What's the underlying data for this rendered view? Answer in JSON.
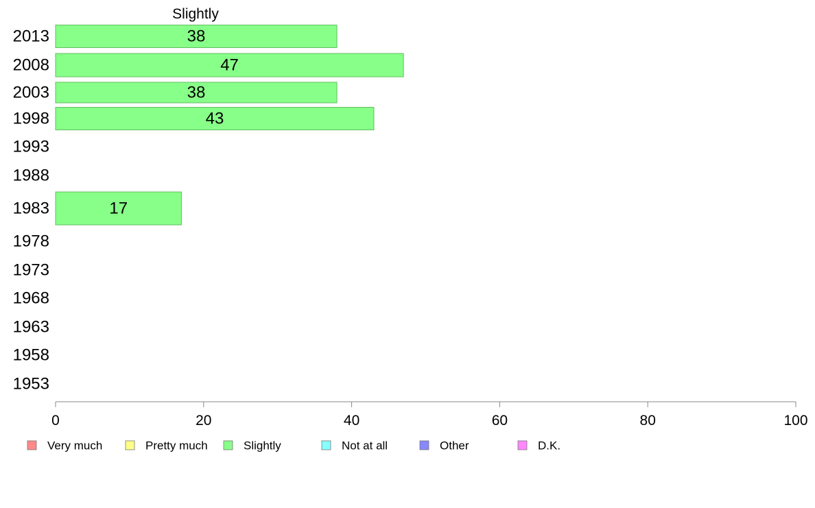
{
  "chart_data": {
    "type": "bar",
    "orientation": "horizontal",
    "title": "Slightly",
    "categories": [
      "2013",
      "2008",
      "2003",
      "1998",
      "1993",
      "1988",
      "1983",
      "1978",
      "1973",
      "1968",
      "1963",
      "1958",
      "1953"
    ],
    "series": [
      {
        "name": "Slightly",
        "values": [
          38,
          47,
          38,
          43,
          null,
          null,
          17,
          null,
          null,
          null,
          null,
          null,
          null
        ],
        "color": "#88ff88",
        "stroke": "#5fbf5f"
      }
    ],
    "xlim": [
      0,
      100
    ],
    "xticks": [
      0,
      20,
      40,
      60,
      80,
      100
    ],
    "grid": false,
    "legend_position": "bottom",
    "legend": [
      {
        "label": "Very much",
        "color": "#ff8888"
      },
      {
        "label": "Pretty much",
        "color": "#ffff88"
      },
      {
        "label": "Slightly",
        "color": "#88ff88"
      },
      {
        "label": "Not at all",
        "color": "#88ffff"
      },
      {
        "label": "Other",
        "color": "#8888ff"
      },
      {
        "label": "D.K.",
        "color": "#ff88ff"
      }
    ]
  }
}
